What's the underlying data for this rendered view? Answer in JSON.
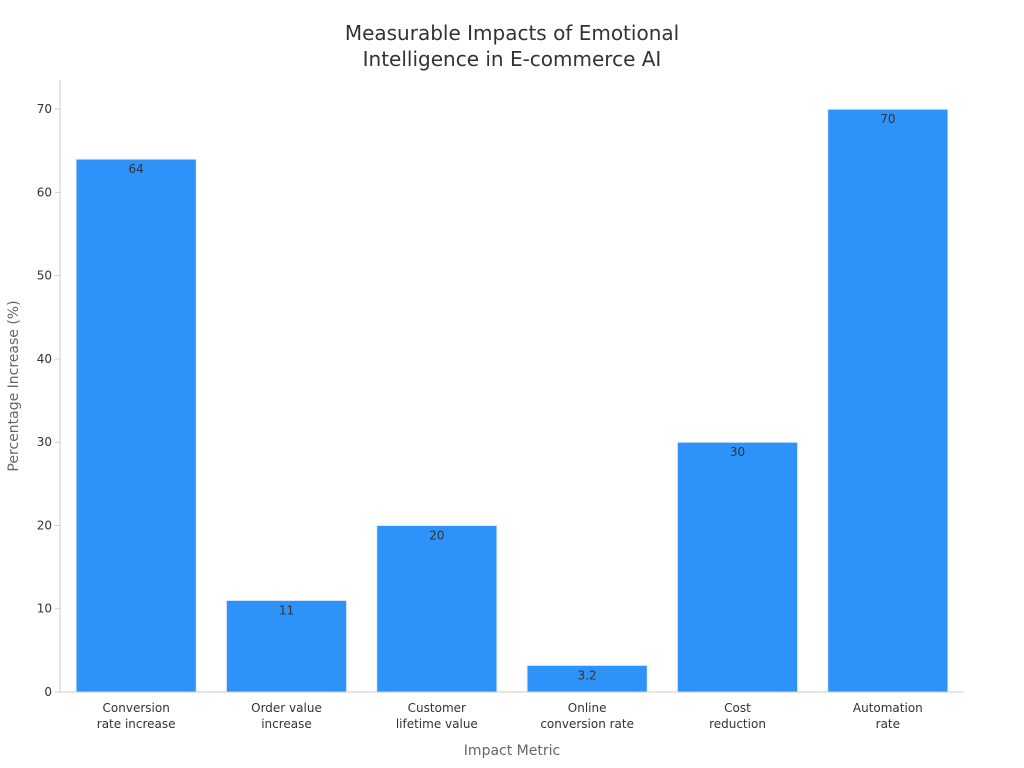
{
  "chart_data": {
    "type": "bar",
    "title": [
      "Measurable Impacts of Emotional",
      "Intelligence in E-commerce AI"
    ],
    "xlabel": "Impact Metric",
    "ylabel": "Percentage Increase (%)",
    "categories": [
      [
        "Conversion",
        "rate increase"
      ],
      [
        "Order value",
        "increase"
      ],
      [
        "Customer",
        "lifetime value"
      ],
      [
        "Online",
        "conversion rate"
      ],
      [
        "Cost",
        "reduction"
      ],
      [
        "Automation",
        "rate"
      ]
    ],
    "values": [
      64,
      11,
      20,
      3.2,
      30,
      70
    ],
    "data_labels": [
      "64",
      "11",
      "20",
      "3.2",
      "30",
      "70"
    ],
    "ylim": [
      0,
      73.5
    ],
    "yticks": [
      0,
      10,
      20,
      30,
      40,
      50,
      60,
      70
    ],
    "grid": false,
    "colors": {
      "bar": "#2e93f8",
      "bar_edge": "#e8eef6",
      "axis": "#cccccc"
    }
  }
}
